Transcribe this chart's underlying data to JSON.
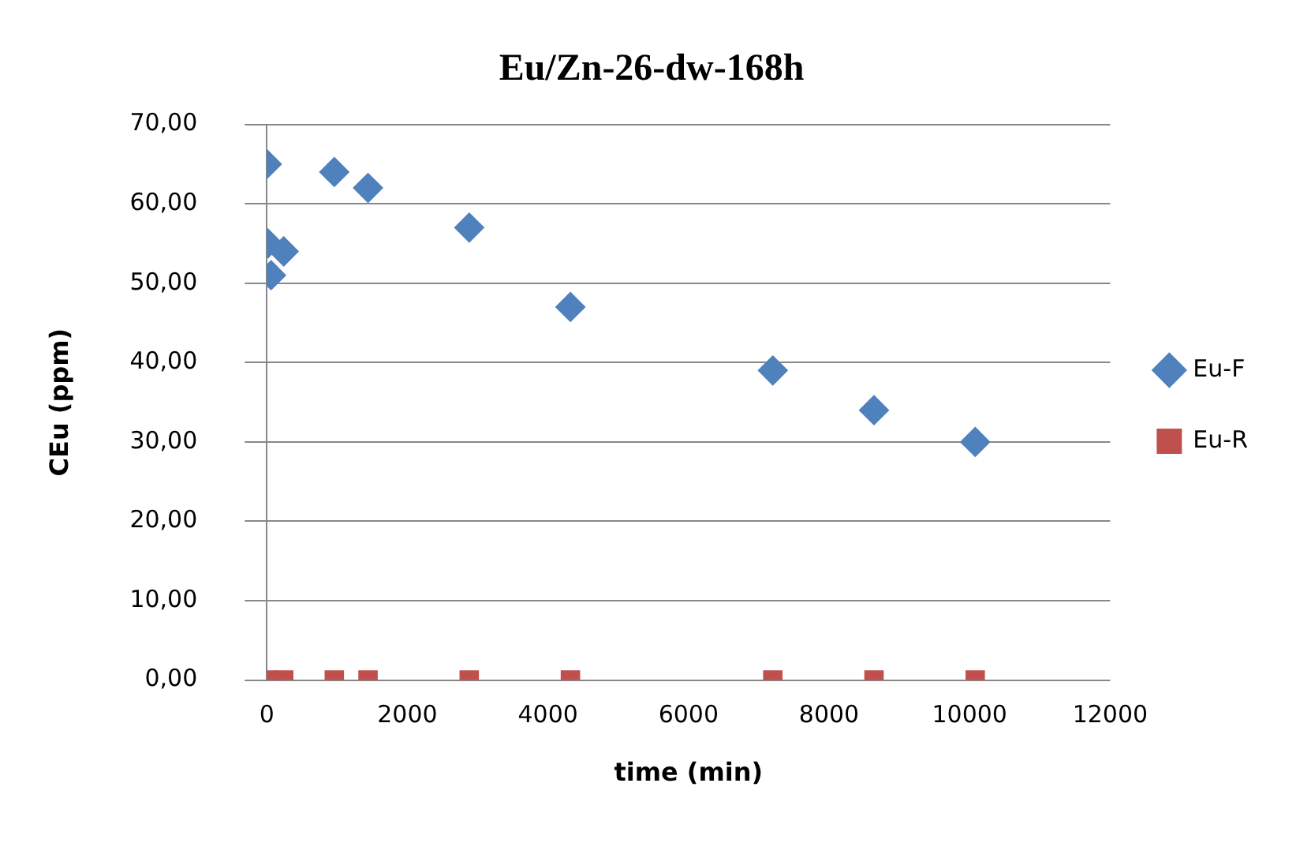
{
  "chart_data": {
    "type": "scatter",
    "title": "Eu/Zn-26-dw-168h",
    "xlabel": "time (min)",
    "ylabel": "CEu (ppm)",
    "xlim": [
      0,
      12000
    ],
    "xticks": [
      0,
      2000,
      4000,
      6000,
      8000,
      10000,
      12000
    ],
    "ylim": [
      0,
      70
    ],
    "yticks": [
      {
        "value": 0,
        "label": "0,00"
      },
      {
        "value": 10,
        "label": "10,00"
      },
      {
        "value": 20,
        "label": "20,00"
      },
      {
        "value": 30,
        "label": "30,00"
      },
      {
        "value": 40,
        "label": "40,00"
      },
      {
        "value": 50,
        "label": "50,00"
      },
      {
        "value": 60,
        "label": "60,00"
      },
      {
        "value": 70,
        "label": "70,00"
      }
    ],
    "grid": "y",
    "legend": "right",
    "series": [
      {
        "name": "Eu-F",
        "color": "#4f81bd",
        "marker": "diamond",
        "x": [
          0,
          15,
          60,
          240,
          960,
          1440,
          2880,
          4320,
          7200,
          8640,
          10080
        ],
        "values": [
          65,
          55,
          51,
          54,
          64,
          62,
          57,
          47,
          39,
          34,
          30
        ]
      },
      {
        "name": "Eu-R",
        "color": "#c0504d",
        "marker": "square",
        "x": [
          0,
          240,
          960,
          1440,
          2880,
          4320,
          7200,
          8640,
          10080
        ],
        "values": [
          0,
          0,
          0,
          0,
          0,
          0,
          0,
          0,
          0
        ]
      }
    ]
  }
}
